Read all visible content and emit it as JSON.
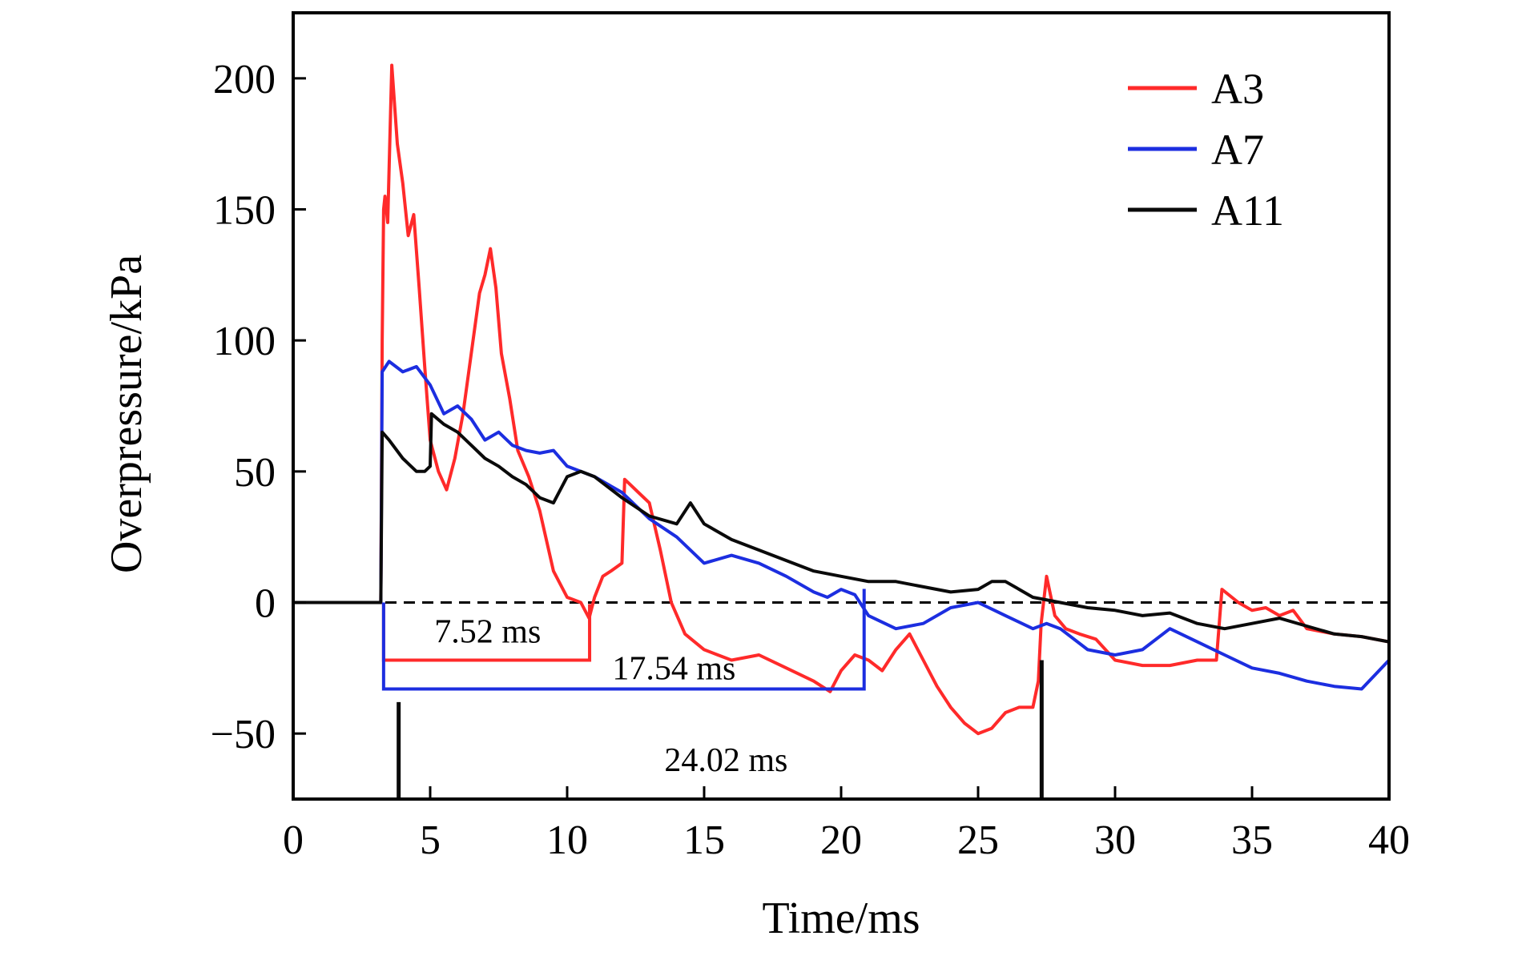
{
  "chart_data": {
    "type": "line",
    "title": "",
    "xlabel": "Time/ms",
    "ylabel": "Overpressure/kPa",
    "xlim": [
      0,
      40
    ],
    "ylim": [
      -75,
      225
    ],
    "xticks": [
      0,
      5,
      10,
      15,
      20,
      25,
      30,
      35,
      40
    ],
    "yticks": [
      -50,
      0,
      50,
      100,
      150,
      200
    ],
    "xtick_labels": [
      "0",
      "5",
      "10",
      "15",
      "20",
      "25",
      "30",
      "35",
      "40"
    ],
    "ytick_labels": [
      "−50",
      "0",
      "50",
      "100",
      "150",
      "200"
    ],
    "grid": false,
    "legend": "top-right",
    "reference_line": {
      "y": 0,
      "style": "dashed"
    },
    "series": [
      {
        "name": "A3",
        "color": "#ff2a2a",
        "x": [
          0,
          1,
          2,
          3.2,
          3.25,
          3.3,
          3.35,
          3.45,
          3.6,
          3.8,
          4.0,
          4.2,
          4.4,
          4.6,
          4.8,
          5.0,
          5.3,
          5.6,
          5.9,
          6.2,
          6.5,
          6.8,
          7.0,
          7.2,
          7.4,
          7.6,
          7.9,
          8.2,
          8.6,
          9.0,
          9.5,
          10.0,
          10.5,
          10.8,
          11.0,
          11.3,
          11.6,
          12.0,
          12.1,
          12.3,
          12.6,
          13.0,
          13.4,
          13.8,
          14.3,
          15.0,
          15.5,
          16,
          17,
          18,
          19,
          19.6,
          20.0,
          20.5,
          21.0,
          21.5,
          22.0,
          22.5,
          23.0,
          23.5,
          24.0,
          24.5,
          25.0,
          25.5,
          26.0,
          26.5,
          27.0,
          27.2,
          27.3,
          27.5,
          27.8,
          28.2,
          28.7,
          29.3,
          30,
          31,
          32,
          33,
          33.7,
          33.9,
          34.5,
          35,
          35.5,
          36,
          36.5,
          37,
          38,
          39,
          40
        ],
        "y": [
          0,
          0,
          0,
          0,
          100,
          150,
          155,
          145,
          205,
          175,
          160,
          140,
          148,
          120,
          90,
          62,
          50,
          43,
          55,
          72,
          95,
          118,
          125,
          135,
          120,
          95,
          78,
          58,
          48,
          35,
          12,
          2,
          0,
          -6,
          2,
          10,
          12,
          15,
          47,
          45,
          42,
          38,
          20,
          0,
          -12,
          -18,
          -20,
          -22,
          -20,
          -25,
          -30,
          -34,
          -26,
          -20,
          -22,
          -26,
          -18,
          -12,
          -22,
          -32,
          -40,
          -46,
          -50,
          -48,
          -42,
          -40,
          -40,
          -30,
          -8,
          10,
          -5,
          -10,
          -12,
          -14,
          -22,
          -24,
          -24,
          -22,
          -22,
          5,
          0,
          -3,
          -2,
          -5,
          -3,
          -10,
          -12,
          -13,
          -15
        ]
      },
      {
        "name": "A7",
        "color": "#1c2ee0",
        "x": [
          0,
          1,
          2,
          3.2,
          3.25,
          3.5,
          4.0,
          4.5,
          5.0,
          5.5,
          6.0,
          6.5,
          7.0,
          7.5,
          8.0,
          8.5,
          9.0,
          9.5,
          10.0,
          11,
          12,
          13,
          14,
          15,
          16,
          17,
          18,
          19,
          19.5,
          20,
          20.5,
          21,
          22,
          23,
          24,
          25,
          26,
          27,
          27.5,
          28,
          29,
          30,
          31,
          32,
          33,
          34,
          35,
          36,
          37,
          38,
          39,
          40
        ],
        "y": [
          0,
          0,
          0,
          0,
          88,
          92,
          88,
          90,
          83,
          72,
          75,
          70,
          62,
          65,
          60,
          58,
          57,
          58,
          52,
          48,
          42,
          32,
          25,
          15,
          18,
          15,
          10,
          4,
          2,
          5,
          3,
          -5,
          -10,
          -8,
          -2,
          0,
          -5,
          -10,
          -8,
          -10,
          -18,
          -20,
          -18,
          -10,
          -15,
          -20,
          -25,
          -27,
          -30,
          -32,
          -33,
          -22
        ]
      },
      {
        "name": "A11",
        "color": "#0a0a0a",
        "x": [
          0,
          1,
          2,
          3.2,
          3.25,
          3.5,
          4.0,
          4.5,
          4.8,
          5.0,
          5.05,
          5.5,
          6.0,
          6.5,
          7.0,
          7.5,
          8.0,
          8.5,
          9.0,
          9.5,
          10.0,
          10.5,
          11,
          12,
          13,
          14,
          14.5,
          15,
          16,
          17,
          18,
          19,
          20,
          21,
          22,
          23,
          24,
          25,
          25.5,
          26,
          26.5,
          27,
          28,
          29,
          30,
          31,
          32,
          33,
          34,
          35,
          36,
          37,
          38,
          39,
          40
        ],
        "y": [
          0,
          0,
          0,
          0,
          65,
          62,
          55,
          50,
          50,
          52,
          72,
          68,
          65,
          60,
          55,
          52,
          48,
          45,
          40,
          38,
          48,
          50,
          48,
          40,
          33,
          30,
          38,
          30,
          24,
          20,
          16,
          12,
          10,
          8,
          8,
          6,
          4,
          5,
          8,
          8,
          5,
          2,
          0,
          -2,
          -3,
          -5,
          -4,
          -8,
          -10,
          -8,
          -6,
          -9,
          -12,
          -13,
          -15
        ]
      }
    ],
    "annotations": [
      {
        "label": "7.52 ms",
        "color": "#ff2a2a",
        "x_start": 3.3,
        "x_end": 10.82,
        "y": -22
      },
      {
        "label": "17.54 ms",
        "color": "#1c2ee0",
        "x_start": 3.3,
        "x_end": 20.84,
        "y": -33
      },
      {
        "label": "24.02 ms",
        "color": "#0a0a0a",
        "x_start": 3.3,
        "x_end": 27.32,
        "y": -75
      }
    ]
  }
}
